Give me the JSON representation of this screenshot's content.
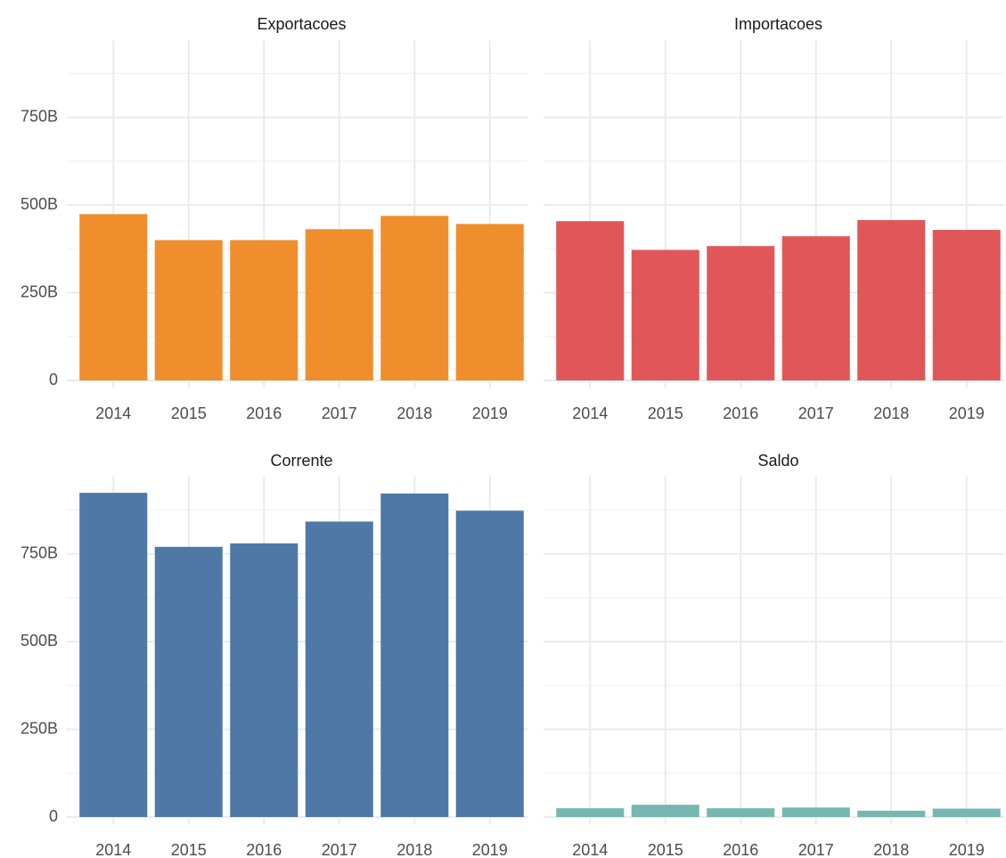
{
  "chart_data": [
    {
      "type": "bar",
      "title": "Exportacoes",
      "categories": [
        "2014",
        "2015",
        "2016",
        "2017",
        "2018",
        "2019"
      ],
      "values": [
        474000000000,
        400000000000,
        400000000000,
        431000000000,
        469000000000,
        446000000000
      ],
      "color": "#f08e2d",
      "ylim": [
        0,
        970000000000
      ],
      "yticks": [
        {
          "value": 0,
          "label": "0"
        },
        {
          "value": 250000000000,
          "label": "250B"
        },
        {
          "value": 500000000000,
          "label": "500B"
        },
        {
          "value": 750000000000,
          "label": "750B"
        }
      ],
      "minor_yticks": [
        125000000000,
        375000000000,
        625000000000,
        875000000000
      ],
      "grid": true,
      "show_ytick_labels": true
    },
    {
      "type": "bar",
      "title": "Importacoes",
      "categories": [
        "2014",
        "2015",
        "2016",
        "2017",
        "2018",
        "2019"
      ],
      "values": [
        454000000000,
        372000000000,
        383000000000,
        411000000000,
        457000000000,
        429000000000
      ],
      "color": "#e15759",
      "ylim": [
        0,
        970000000000
      ],
      "yticks": [
        0,
        250000000000,
        500000000000,
        750000000000
      ],
      "minor_yticks": [
        125000000000,
        375000000000,
        625000000000,
        875000000000
      ],
      "grid": true,
      "show_ytick_labels": false
    },
    {
      "type": "bar",
      "title": "Corrente",
      "categories": [
        "2014",
        "2015",
        "2016",
        "2017",
        "2018",
        "2019"
      ],
      "values": [
        924000000000,
        770000000000,
        780000000000,
        842000000000,
        922000000000,
        873000000000
      ],
      "color": "#4e79a7",
      "ylim": [
        0,
        970000000000
      ],
      "yticks": [
        {
          "value": 0,
          "label": "0"
        },
        {
          "value": 250000000000,
          "label": "250B"
        },
        {
          "value": 500000000000,
          "label": "500B"
        },
        {
          "value": 750000000000,
          "label": "750B"
        }
      ],
      "minor_yticks": [
        125000000000,
        375000000000,
        625000000000,
        875000000000
      ],
      "grid": true,
      "show_ytick_labels": true
    },
    {
      "type": "bar",
      "title": "Saldo",
      "categories": [
        "2014",
        "2015",
        "2016",
        "2017",
        "2018",
        "2019"
      ],
      "values": [
        25000000000,
        35000000000,
        25000000000,
        27000000000,
        18000000000,
        24000000000
      ],
      "color": "#76b7b2",
      "ylim": [
        0,
        970000000000
      ],
      "yticks": [
        0,
        250000000000,
        500000000000,
        750000000000
      ],
      "minor_yticks": [
        125000000000,
        375000000000,
        625000000000,
        875000000000
      ],
      "grid": true,
      "show_ytick_labels": false
    }
  ]
}
